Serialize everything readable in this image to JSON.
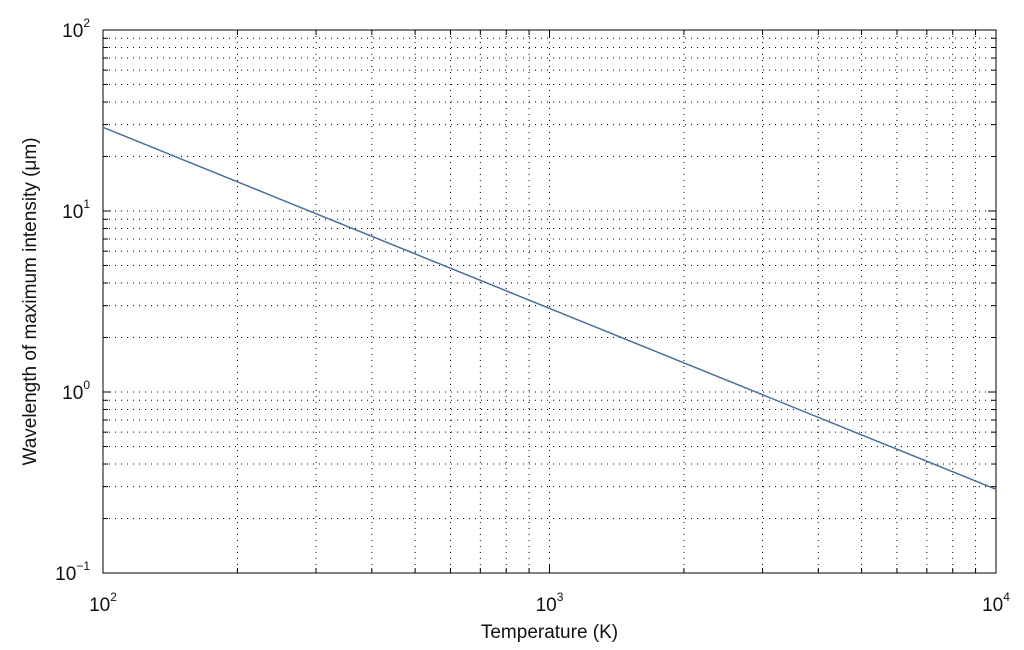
{
  "chart_data": {
    "type": "line",
    "title": "",
    "xlabel": "Temperature (K)",
    "ylabel": "Wavelength of maximum intensity (μm)",
    "xscale": "log",
    "yscale": "log",
    "xlim": [
      100,
      10000
    ],
    "ylim": [
      0.1,
      100
    ],
    "grid": "on (dotted, major and minor)",
    "x_ticks": [
      {
        "base": "10",
        "exp": "2"
      },
      {
        "base": "10",
        "exp": "3"
      },
      {
        "base": "10",
        "exp": "4"
      }
    ],
    "y_ticks": [
      {
        "base": "10",
        "exp": "−1"
      },
      {
        "base": "10",
        "exp": "0"
      },
      {
        "base": "10",
        "exp": "1"
      },
      {
        "base": "10",
        "exp": "2"
      }
    ],
    "series": [
      {
        "color": "#4a6f9a",
        "x": [
          100,
          10000
        ],
        "y": [
          28.98,
          0.2898
        ]
      }
    ]
  }
}
